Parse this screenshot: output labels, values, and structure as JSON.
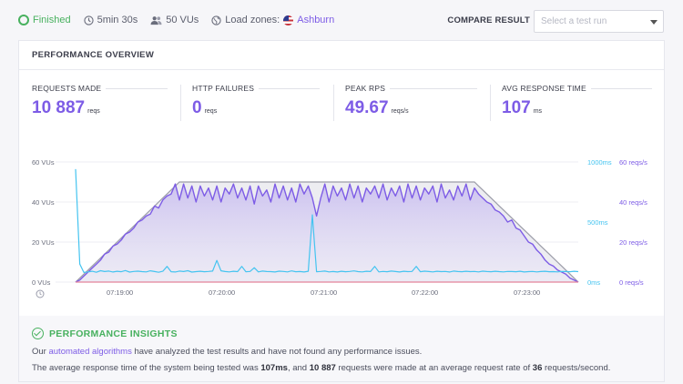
{
  "topbar": {
    "status": "Finished",
    "duration": "5min 30s",
    "vus": "50 VUs",
    "load_zones_label": "Load zones:",
    "load_zone": "Ashburn",
    "compare_label": "COMPARE RESULT",
    "compare_placeholder": "Select a test run"
  },
  "overview": {
    "title": "PERFORMANCE OVERVIEW",
    "metrics": [
      {
        "label": "REQUESTS MADE",
        "value": "10 887",
        "unit": "reqs"
      },
      {
        "label": "HTTP FAILURES",
        "value": "0",
        "unit": "reqs"
      },
      {
        "label": "PEAK RPS",
        "value": "49.67",
        "unit": "reqs/s"
      },
      {
        "label": "AVG RESPONSE TIME",
        "value": "107",
        "unit": "ms"
      }
    ]
  },
  "chart_data": {
    "type": "area",
    "x_ticks": [
      "07:19:00",
      "07:20:00",
      "07:21:00",
      "07:22:00",
      "07:23:00"
    ],
    "y_left": {
      "ticks": [
        "0 VUs",
        "20 VUs",
        "40 VUs",
        "60 VUs"
      ],
      "range": [
        0,
        60
      ]
    },
    "y_mid": {
      "ticks": [
        "0ms",
        "500ms",
        "1000ms"
      ],
      "range": [
        0,
        1000
      ]
    },
    "y_right": {
      "ticks": [
        "0 reqs/s",
        "20 reqs/s",
        "40 reqs/s",
        "60 reqs/s"
      ],
      "range": [
        0,
        60
      ]
    },
    "colors": {
      "vus": "#9b9ca8",
      "rps": "#7d5ce6",
      "response": "#45c4f0",
      "failures": "#e3849a"
    },
    "series": [
      {
        "key": "vus",
        "values": [
          0,
          2,
          4,
          6,
          8,
          10,
          12,
          14,
          16,
          18,
          20,
          22,
          24,
          26,
          28,
          30,
          32,
          34,
          36,
          38,
          40,
          42,
          44,
          46,
          48,
          50,
          50,
          50,
          50,
          50,
          50,
          50,
          50,
          50,
          50,
          50,
          50,
          50,
          50,
          50,
          50,
          50,
          50,
          50,
          50,
          50,
          50,
          50,
          50,
          50,
          50,
          50,
          50,
          50,
          50,
          50,
          50,
          50,
          50,
          50,
          50,
          50,
          50,
          50,
          50,
          50,
          50,
          50,
          50,
          50,
          50,
          50,
          50,
          50,
          50,
          50,
          50,
          50,
          50,
          50,
          50,
          50,
          50,
          50,
          50,
          50,
          50,
          50,
          50,
          50,
          50,
          50,
          50,
          50,
          50,
          50,
          50,
          48,
          46,
          44,
          42,
          40,
          38,
          36,
          34,
          32,
          30,
          28,
          26,
          24,
          22,
          20,
          18,
          16,
          14,
          12,
          10,
          8,
          6,
          4,
          2,
          0
        ]
      },
      {
        "key": "rps",
        "values": [
          0,
          1,
          3,
          5,
          7,
          9,
          11,
          14,
          15,
          18,
          19,
          21,
          24,
          25,
          27,
          30,
          31,
          33,
          34,
          38,
          37,
          41,
          43,
          44,
          49,
          41,
          49,
          42,
          48,
          40,
          48,
          43,
          47,
          41,
          48,
          40,
          47,
          44,
          49,
          42,
          47,
          41,
          48,
          39,
          48,
          43,
          46,
          40,
          49,
          42,
          48,
          41,
          47,
          40,
          49,
          44,
          48,
          42,
          33,
          42,
          49,
          40,
          48,
          43,
          47,
          41,
          49,
          42,
          48,
          40,
          47,
          44,
          48,
          42,
          49,
          41,
          47,
          43,
          48,
          40,
          49,
          42,
          48,
          41,
          47,
          44,
          48,
          40,
          49,
          42,
          46,
          41,
          48,
          43,
          49,
          41,
          47,
          44,
          42,
          40,
          39,
          36,
          35,
          33,
          30,
          31,
          27,
          26,
          23,
          20,
          19,
          16,
          14,
          11,
          9,
          8,
          6,
          5,
          4,
          2,
          1,
          0
        ]
      },
      {
        "key": "response",
        "values": [
          940,
          150,
          80,
          85,
          90,
          82,
          95,
          88,
          92,
          84,
          90,
          86,
          96,
          83,
          89,
          91,
          87,
          85,
          94,
          88,
          82,
          90,
          130,
          86,
          84,
          92,
          88,
          95,
          83,
          87,
          90,
          86,
          89,
          92,
          180,
          94,
          88,
          85,
          90,
          87,
          130,
          86,
          89,
          120,
          85,
          92,
          88,
          87,
          84,
          91,
          89,
          85,
          93,
          86,
          88,
          84,
          90,
          560,
          86,
          89,
          92,
          85,
          88,
          84,
          90,
          86,
          89,
          93,
          87,
          85,
          90,
          88,
          130,
          85,
          89,
          86,
          92,
          88,
          84,
          90,
          87,
          89,
          130,
          86,
          91,
          88,
          85,
          90,
          87,
          89,
          84,
          92,
          88,
          86,
          90,
          87,
          89,
          85,
          91,
          88,
          86,
          90,
          87,
          85,
          89,
          88,
          86,
          90,
          84,
          87,
          89,
          85,
          88,
          90,
          86,
          87,
          85,
          89,
          88,
          86,
          90,
          87
        ]
      },
      {
        "key": "failures",
        "values": [
          0,
          0
        ]
      }
    ]
  },
  "insights": {
    "title": "PERFORMANCE INSIGHTS",
    "line1_pre": "Our",
    "line1_link": "automated algorithms",
    "line1_post": "have analyzed the test results and have not found any performance issues.",
    "line2_a": "The average response time of the system being tested was",
    "line2_b": "107ms",
    "line2_c": ", and",
    "line2_d": "10 887",
    "line2_e": "requests were made at an average request rate of",
    "line2_f": "36",
    "line2_g": "requests/second."
  }
}
